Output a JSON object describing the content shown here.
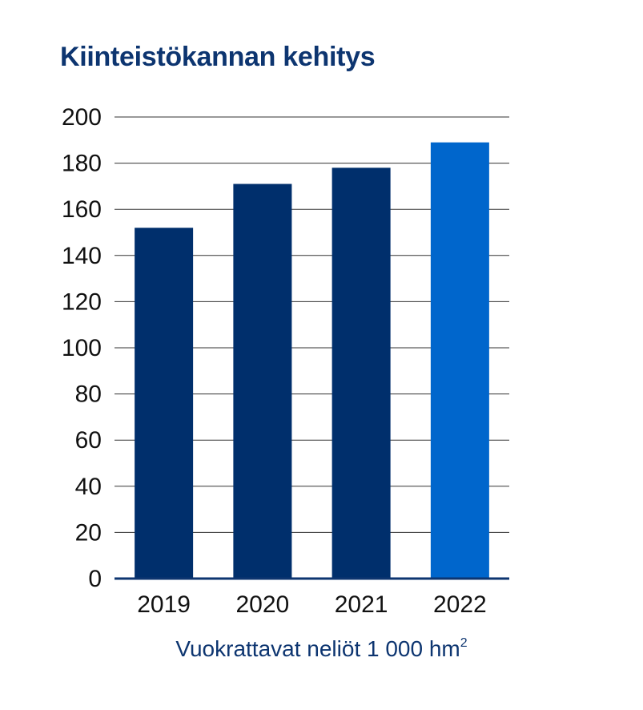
{
  "chart_data": {
    "type": "bar",
    "title": "Kiinteistökannan kehitys",
    "xlabel": "Vuokrattavat neliöt 1 000 hm",
    "xlabel_superscript": "2",
    "ylabel": "",
    "categories": [
      "2019",
      "2020",
      "2021",
      "2022"
    ],
    "values": [
      152,
      171,
      178,
      189
    ],
    "ylim": [
      0,
      200
    ],
    "yticks": [
      "0",
      "20",
      "40",
      "60",
      "80",
      "100",
      "120",
      "140",
      "160",
      "180",
      "200"
    ],
    "grid": true,
    "legend": "none",
    "colors": {
      "bar": "#002f6c",
      "highlight": "#0066cc",
      "highlight_category": "2022",
      "gridline": "#333333",
      "axis": "#0d3570",
      "title": "#0d3570"
    }
  }
}
